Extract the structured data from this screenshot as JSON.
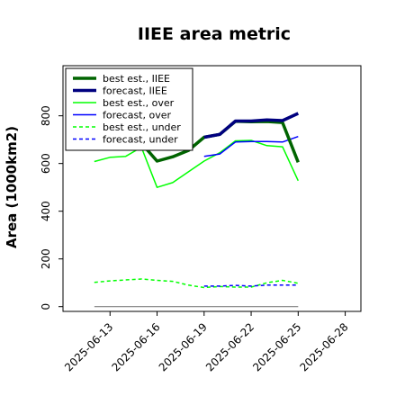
{
  "chart_data": {
    "type": "line",
    "title": "IIEE area metric",
    "xlabel": "",
    "ylabel": "Area (1000km2)",
    "x_ticks": [
      "2025-06-13",
      "2025-06-16",
      "2025-06-19",
      "2025-06-22",
      "2025-06-25",
      "2025-06-28"
    ],
    "highlight_tick": "2025-06-19",
    "highlight_color": "#2e8b2e",
    "xlim": [
      "2025-06-10",
      "2025-06-29"
    ],
    "ylim": [
      -20,
      1010
    ],
    "y_ticks": [
      0,
      200,
      400,
      600,
      800
    ],
    "legend_position": "upper-left",
    "series": [
      {
        "name": "best est., IIEE",
        "color": "#006400",
        "dash": "solid",
        "width": 3.5,
        "x": [
          "2025-06-12",
          "2025-06-13",
          "2025-06-14",
          "2025-06-15",
          "2025-06-16",
          "2025-06-17",
          "2025-06-18",
          "2025-06-19",
          "2025-06-20",
          "2025-06-21",
          "2025-06-22",
          "2025-06-23",
          "2025-06-24",
          "2025-06-25"
        ],
        "y": [
          668,
          670,
          672,
          685,
          610,
          628,
          655,
          710,
          722,
          777,
          775,
          776,
          772,
          605
        ]
      },
      {
        "name": "forecast, IIEE",
        "color": "#00007f",
        "dash": "solid",
        "width": 3.5,
        "x": [
          "2025-06-19",
          "2025-06-20",
          "2025-06-21",
          "2025-06-22",
          "2025-06-23",
          "2025-06-24",
          "2025-06-25"
        ],
        "y": [
          710,
          722,
          778,
          778,
          783,
          780,
          810
        ]
      },
      {
        "name": "best est., over",
        "color": "#00ff00",
        "dash": "solid",
        "width": 1.5,
        "x": [
          "2025-06-12",
          "2025-06-13",
          "2025-06-14",
          "2025-06-15",
          "2025-06-16",
          "2025-06-17",
          "2025-06-18",
          "2025-06-19",
          "2025-06-20",
          "2025-06-21",
          "2025-06-22",
          "2025-06-23",
          "2025-06-24",
          "2025-06-25"
        ],
        "y": [
          608,
          626,
          630,
          668,
          500,
          520,
          565,
          610,
          645,
          695,
          697,
          675,
          670,
          528
        ]
      },
      {
        "name": "forecast, over",
        "color": "#0000ff",
        "dash": "solid",
        "width": 1.5,
        "x": [
          "2025-06-19",
          "2025-06-20",
          "2025-06-21",
          "2025-06-22",
          "2025-06-23",
          "2025-06-24",
          "2025-06-25"
        ],
        "y": [
          630,
          640,
          690,
          692,
          692,
          690,
          713
        ]
      },
      {
        "name": "best est., under",
        "color": "#00ff00",
        "dash": "dashed",
        "width": 1.5,
        "x": [
          "2025-06-12",
          "2025-06-13",
          "2025-06-14",
          "2025-06-15",
          "2025-06-16",
          "2025-06-17",
          "2025-06-18",
          "2025-06-19",
          "2025-06-20",
          "2025-06-21",
          "2025-06-22",
          "2025-06-23",
          "2025-06-24",
          "2025-06-25"
        ],
        "y": [
          102,
          108,
          112,
          116,
          110,
          106,
          90,
          80,
          84,
          82,
          82,
          100,
          110,
          98
        ]
      },
      {
        "name": "forecast, under",
        "color": "#0000ff",
        "dash": "dashed",
        "width": 1.5,
        "x": [
          "2025-06-19",
          "2025-06-20",
          "2025-06-21",
          "2025-06-22",
          "2025-06-23",
          "2025-06-24",
          "2025-06-25"
        ],
        "y": [
          86,
          86,
          89,
          86,
          90,
          90,
          90
        ]
      }
    ],
    "reference_line": {
      "y": 0,
      "x": [
        "2025-06-12",
        "2025-06-25"
      ],
      "color": "#808080"
    }
  }
}
